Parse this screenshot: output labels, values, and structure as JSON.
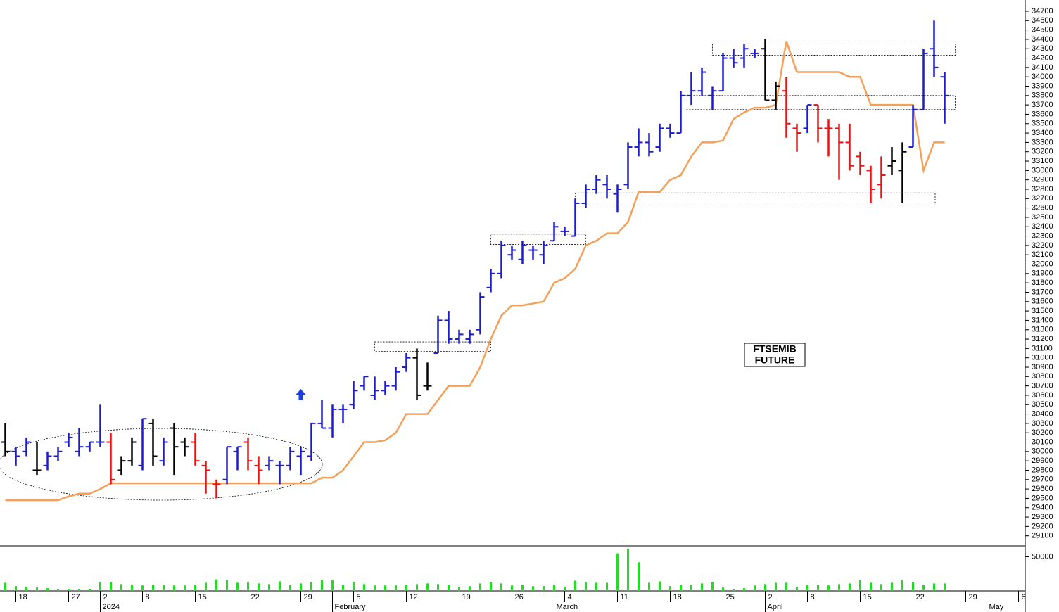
{
  "chart_data": [
    {
      "type": "ohlc",
      "x": [
        0,
        1,
        2,
        3,
        4,
        5,
        6,
        7,
        8,
        9,
        10,
        11,
        12,
        13,
        14,
        15,
        16,
        17,
        18,
        19,
        20,
        21,
        22,
        23,
        24,
        25,
        26,
        27,
        28,
        29,
        30,
        31,
        32,
        33,
        34,
        35,
        36,
        37,
        38,
        39,
        40,
        41,
        42,
        43,
        44,
        45,
        46,
        47,
        48,
        49,
        50,
        51,
        52,
        53,
        54,
        55,
        56,
        57,
        58,
        59,
        60,
        61,
        62,
        63,
        64,
        65,
        66,
        67,
        68,
        69,
        70,
        71,
        72,
        73,
        74,
        75,
        76,
        77,
        78,
        79,
        80,
        81,
        82,
        83,
        84,
        85,
        86,
        87,
        88,
        89
      ],
      "open": [
        30100,
        30000,
        30000,
        29800,
        29850,
        29950,
        30100,
        30000,
        30050,
        30100,
        30100,
        29800,
        29900,
        29850,
        30300,
        29900,
        30250,
        30100,
        30100,
        29850,
        29650,
        29700,
        30000,
        30100,
        29850,
        29850,
        29850,
        29850,
        29950,
        29950,
        30300,
        30250,
        30450,
        30500,
        30700,
        30600,
        30650,
        30700,
        30900,
        31000,
        30700,
        31050,
        31400,
        31200,
        31200,
        31300,
        31750,
        31900,
        32100,
        32050,
        32150,
        32100,
        32250,
        32350,
        32300,
        32650,
        32800,
        32850,
        32750,
        32850,
        33250,
        33300,
        33250,
        33450,
        33400,
        33800,
        33850,
        33800,
        33850,
        34200,
        34200,
        34250,
        34300,
        33750,
        33850,
        33450,
        33450,
        33700,
        33450,
        33450,
        33300,
        33150,
        33000,
        32850,
        33050,
        33000,
        33250,
        33650,
        34300,
        34000
      ],
      "high": [
        30300,
        30050,
        30150,
        30100,
        30000,
        30050,
        30200,
        30250,
        30100,
        30500,
        30200,
        29950,
        30150,
        30350,
        30350,
        30150,
        30300,
        30150,
        30200,
        29900,
        29700,
        30050,
        30050,
        30150,
        29950,
        29950,
        29900,
        30050,
        30050,
        30300,
        30550,
        30500,
        30500,
        30750,
        30800,
        30800,
        30750,
        30900,
        31050,
        31100,
        30950,
        31450,
        31500,
        31300,
        31300,
        31700,
        31950,
        32250,
        32200,
        32250,
        32200,
        32250,
        32450,
        32400,
        32700,
        32850,
        32950,
        32950,
        32850,
        33300,
        33450,
        33400,
        33500,
        33500,
        33850,
        34050,
        34100,
        33900,
        34250,
        34300,
        34350,
        34300,
        34400,
        33950,
        34000,
        33500,
        33700,
        33700,
        33550,
        33500,
        33500,
        33200,
        33050,
        33150,
        33250,
        33300,
        33700,
        34300,
        34600,
        34050
      ],
      "low": [
        29950,
        29850,
        29950,
        29750,
        29800,
        29900,
        30050,
        29950,
        30000,
        30050,
        29650,
        29750,
        29850,
        29800,
        29850,
        29850,
        29750,
        29950,
        29850,
        29550,
        29500,
        29650,
        29800,
        29800,
        29650,
        29800,
        29650,
        29800,
        29750,
        29900,
        30250,
        30150,
        30300,
        30450,
        30650,
        30550,
        30600,
        30650,
        30850,
        30550,
        30650,
        31050,
        31150,
        31150,
        31150,
        31250,
        31700,
        31850,
        32050,
        32000,
        32050,
        32000,
        32250,
        32300,
        32300,
        32600,
        32750,
        32700,
        32550,
        32800,
        33150,
        33150,
        33200,
        33350,
        33400,
        33700,
        33800,
        33650,
        33850,
        34100,
        34100,
        34200,
        33750,
        33650,
        33350,
        33200,
        33400,
        33300,
        33150,
        32900,
        33000,
        32950,
        32650,
        32700,
        32950,
        32650,
        33250,
        33650,
        34000,
        33500
      ],
      "close": [
        30000,
        29950,
        30100,
        29800,
        29950,
        30000,
        30150,
        30050,
        30100,
        30100,
        29700,
        29900,
        30100,
        30350,
        29950,
        30100,
        30050,
        30050,
        29900,
        29800,
        29650,
        30050,
        30050,
        29900,
        29800,
        29900,
        29850,
        30000,
        30000,
        30300,
        30250,
        30450,
        30450,
        30650,
        30800,
        30650,
        30700,
        30850,
        31000,
        30600,
        30700,
        31400,
        31200,
        31250,
        31250,
        31650,
        31900,
        32200,
        32150,
        32200,
        32150,
        32200,
        32400,
        32350,
        32650,
        32800,
        32900,
        32800,
        32800,
        33250,
        33300,
        33200,
        33450,
        33400,
        33800,
        33850,
        34050,
        33850,
        34200,
        34150,
        34300,
        34250,
        33750,
        33900,
        33500,
        33400,
        33700,
        33450,
        33450,
        33300,
        33050,
        33050,
        32800,
        32950,
        33100,
        33200,
        33650,
        34250,
        34100,
        33800
      ],
      "bar_colors": [
        "#000000",
        "#1c1ccc",
        "#1c1ccc",
        "#000000",
        "#1c1ccc",
        "#1c1ccc",
        "#1c1ccc",
        "#1c1ccc",
        "#1c1ccc",
        "#1c1ccc",
        "#ee1111",
        "#000000",
        "#000000",
        "#1c1ccc",
        "#000000",
        "#1c1ccc",
        "#000000",
        "#000000",
        "#ee1111",
        "#ee1111",
        "#ee1111",
        "#1c1ccc",
        "#1c1ccc",
        "#ee1111",
        "#ee1111",
        "#1c1ccc",
        "#1c1ccc",
        "#1c1ccc",
        "#1c1ccc",
        "#1c1ccc",
        "#1c1ccc",
        "#1c1ccc",
        "#1c1ccc",
        "#1c1ccc",
        "#1c1ccc",
        "#1c1ccc",
        "#1c1ccc",
        "#1c1ccc",
        "#1c1ccc",
        "#000000",
        "#000000",
        "#1c1ccc",
        "#1c1ccc",
        "#1c1ccc",
        "#1c1ccc",
        "#1c1ccc",
        "#1c1ccc",
        "#1c1ccc",
        "#1c1ccc",
        "#1c1ccc",
        "#1c1ccc",
        "#1c1ccc",
        "#1c1ccc",
        "#1c1ccc",
        "#1c1ccc",
        "#1c1ccc",
        "#1c1ccc",
        "#1c1ccc",
        "#1c1ccc",
        "#1c1ccc",
        "#1c1ccc",
        "#1c1ccc",
        "#1c1ccc",
        "#1c1ccc",
        "#1c1ccc",
        "#1c1ccc",
        "#1c1ccc",
        "#1c1ccc",
        "#1c1ccc",
        "#1c1ccc",
        "#1c1ccc",
        "#1c1ccc",
        "#000000",
        "#000000",
        "#ee1111",
        "#ee1111",
        "#1c1ccc",
        "#ee1111",
        "#ee1111",
        "#ee1111",
        "#ee1111",
        "#ee1111",
        "#ee1111",
        "#ee1111",
        "#000000",
        "#000000",
        "#1c1ccc",
        "#1c1ccc",
        "#1c1ccc",
        "#1c1ccc"
      ],
      "stop": {
        "color": "#f5a05a",
        "values": [
          29480,
          29480,
          29480,
          29480,
          29480,
          29480,
          29520,
          29550,
          29550,
          29600,
          29660,
          29660,
          29660,
          29660,
          29660,
          29660,
          29660,
          29660,
          29660,
          29660,
          29660,
          29660,
          29660,
          29660,
          29660,
          29660,
          29660,
          29660,
          29660,
          29660,
          29720,
          29720,
          29800,
          29950,
          30100,
          30100,
          30120,
          30200,
          30400,
          30400,
          30400,
          30550,
          30700,
          30700,
          30700,
          30900,
          31200,
          31450,
          31560,
          31560,
          31580,
          31600,
          31800,
          31850,
          31950,
          32200,
          32250,
          32330,
          32330,
          32450,
          32770,
          32770,
          32770,
          32900,
          32950,
          33150,
          33300,
          33300,
          33320,
          33550,
          33620,
          33670,
          33670,
          33700,
          34380,
          34050,
          34050,
          34050,
          34050,
          34050,
          34000,
          34000,
          33700,
          33700,
          33700,
          33700,
          33700,
          33000,
          33300,
          33300
        ]
      },
      "zones": [
        {
          "x": [
            67.0,
            90.0
          ],
          "y": [
            34230,
            34350
          ]
        },
        {
          "x": [
            64.4,
            90.0
          ],
          "y": [
            33650,
            33800
          ]
        },
        {
          "x": [
            54.0,
            88.1
          ],
          "y": [
            32630,
            32760
          ]
        },
        {
          "x": [
            46.0,
            55.0
          ],
          "y": [
            32210,
            32320
          ]
        },
        {
          "x": [
            35.0,
            46.0
          ],
          "y": [
            31070,
            31170
          ]
        }
      ],
      "signal": {
        "x": 28,
        "y": 30600,
        "color": "#1c3fe0"
      },
      "annotation": [
        "FTSEMIB",
        "FUTURE"
      ],
      "xlim": [
        -0.5,
        96.5
      ],
      "ylim": [
        29000,
        34820
      ],
      "yticks": [
        29100,
        29200,
        29300,
        29400,
        29500,
        29600,
        29700,
        29800,
        29900,
        30000,
        30100,
        30200,
        30300,
        30400,
        30500,
        30600,
        30700,
        30800,
        30900,
        31000,
        31100,
        31200,
        31300,
        31400,
        31500,
        31600,
        31700,
        31800,
        31900,
        32000,
        32100,
        32200,
        32300,
        32400,
        32500,
        32600,
        32700,
        32800,
        32900,
        33000,
        33100,
        33200,
        33300,
        33400,
        33500,
        33600,
        33700,
        33800,
        33900,
        34000,
        34100,
        34200,
        34300,
        34400,
        34500,
        34600,
        34700
      ]
    },
    {
      "type": "bar",
      "x": [
        0,
        1,
        2,
        3,
        4,
        5,
        6,
        7,
        8,
        9,
        10,
        11,
        12,
        13,
        14,
        15,
        16,
        17,
        18,
        19,
        20,
        21,
        22,
        23,
        24,
        25,
        26,
        27,
        28,
        29,
        30,
        31,
        32,
        33,
        34,
        35,
        36,
        37,
        38,
        39,
        40,
        41,
        42,
        43,
        44,
        45,
        46,
        47,
        48,
        49,
        50,
        51,
        52,
        53,
        54,
        55,
        56,
        57,
        58,
        59,
        60,
        61,
        62,
        63,
        64,
        65,
        66,
        67,
        68,
        69,
        70,
        71,
        72,
        73,
        74,
        75,
        76,
        77,
        78,
        79,
        80,
        81,
        82,
        83,
        84,
        85,
        86,
        87,
        88,
        89
      ],
      "values": [
        12000,
        7000,
        6000,
        5000,
        4000,
        3000,
        2000,
        3000,
        3000,
        13000,
        13000,
        10000,
        9000,
        8000,
        9000,
        9000,
        8000,
        8000,
        9000,
        12000,
        17000,
        16000,
        12000,
        13000,
        11000,
        10000,
        14000,
        9000,
        11000,
        13000,
        16000,
        16000,
        9000,
        13000,
        10000,
        8000,
        8000,
        8000,
        9000,
        10000,
        11000,
        10000,
        9000,
        6000,
        7000,
        11000,
        13000,
        11000,
        8000,
        9000,
        7000,
        7000,
        9000,
        6000,
        15000,
        13000,
        12000,
        12000,
        55000,
        62000,
        42000,
        12000,
        14000,
        7000,
        9000,
        9000,
        11000,
        13000,
        5000,
        3000,
        4000,
        8000,
        10000,
        12000,
        12000,
        6000,
        9000,
        9000,
        8000,
        10000,
        11000,
        16000,
        12000,
        10000,
        12000,
        16000,
        13000,
        9000,
        11000,
        11000
      ],
      "color": "#22dd22",
      "xlim": [
        -0.5,
        96.5
      ],
      "ylim": [
        0,
        65000
      ],
      "yticks": [
        50000
      ],
      "xticks": [
        {
          "value": 1,
          "label": "18"
        },
        {
          "value": 6,
          "label": "27"
        },
        {
          "value": 9,
          "label": "2"
        },
        {
          "value": 13,
          "label": "8"
        },
        {
          "value": 18,
          "label": "15"
        },
        {
          "value": 23,
          "label": "22"
        },
        {
          "value": 28,
          "label": "29"
        },
        {
          "value": 33,
          "label": "5"
        },
        {
          "value": 38,
          "label": "12"
        },
        {
          "value": 43,
          "label": "19"
        },
        {
          "value": 48,
          "label": "26"
        },
        {
          "value": 53,
          "label": "4"
        },
        {
          "value": 58,
          "label": "11"
        },
        {
          "value": 63,
          "label": "18"
        },
        {
          "value": 68,
          "label": "25"
        },
        {
          "value": 72,
          "label": "2"
        },
        {
          "value": 76,
          "label": "8"
        },
        {
          "value": 81,
          "label": "15"
        },
        {
          "value": 86,
          "label": "22"
        },
        {
          "value": 91,
          "label": "29"
        },
        {
          "value": 96,
          "label": "6"
        }
      ],
      "month_ticks": [
        {
          "value": 9,
          "label": "2024"
        },
        {
          "value": 31,
          "label": "February"
        },
        {
          "value": 52,
          "label": "March"
        },
        {
          "value": 72,
          "label": "April"
        },
        {
          "value": 93,
          "label": "May"
        }
      ]
    }
  ]
}
